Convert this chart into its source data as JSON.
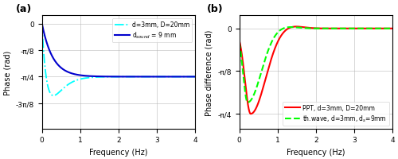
{
  "fig_width": 5.0,
  "fig_height": 2.01,
  "dpi": 100,
  "xlim": [
    0,
    4
  ],
  "freq_max": 4,
  "freq_points": 3000,
  "panel_a": {
    "label": "(a)",
    "ylabel": "Phase (rad)",
    "xlabel": "Frequency (Hz)",
    "yticks": [
      0,
      -0.3926990816987242,
      -0.7853981633974483,
      -1.1780972450961724
    ],
    "yticklabels": [
      "0",
      "-π/8",
      "-π/4",
      "-3π/8"
    ],
    "ylim": [
      -1.55,
      0.12
    ],
    "legend_loc": "upper right",
    "line1_label": "d=3mm, D=20mm",
    "line1_color": "cyan",
    "line1_linestyle": "-.",
    "line1_linewidth": 1.3,
    "line2_label": "d$_{sound}$ = 9 mm",
    "line2_color": "#0000cd",
    "line2_linestyle": "-",
    "line2_linewidth": 1.5,
    "sound_f0": 0.28,
    "defect_f0": 0.13,
    "defect_fpeak": 0.2,
    "defect_Adip": 0.3927
  },
  "panel_b": {
    "label": "(b)",
    "ylabel": "Phase difference (rad)",
    "xlabel": "Frequency (Hz)",
    "yticks": [
      0,
      -0.3926990816987242,
      -0.7853981633974483
    ],
    "yticklabels": [
      "0",
      "-π/8",
      "-π/4"
    ],
    "ylim": [
      -0.92,
      0.12
    ],
    "legend_loc": "lower right",
    "line1_label": "PPT, d=3mm, D=20mm",
    "line1_color": "red",
    "line1_linestyle": "-",
    "line1_linewidth": 1.5,
    "line2_label": "th.wave, d=3mm, d$_s$=9mm",
    "line2_color": "lime",
    "line2_linestyle": "--",
    "line2_linewidth": 1.5,
    "ppt_f0": 0.28,
    "ppt_fpeak": 0.32,
    "ppt_Adip": 0.7,
    "ppt_recover": 0.55,
    "tw_f0": 0.2,
    "tw_fpeak": 0.25,
    "tw_Adip": 0.62,
    "tw_recover": 0.5
  },
  "grid_color": "#b0b0b0",
  "grid_alpha": 0.7,
  "tick_labelsize": 6.5,
  "axis_labelsize": 7.0,
  "legend_fontsize": 5.5,
  "label_fontsize": 9
}
